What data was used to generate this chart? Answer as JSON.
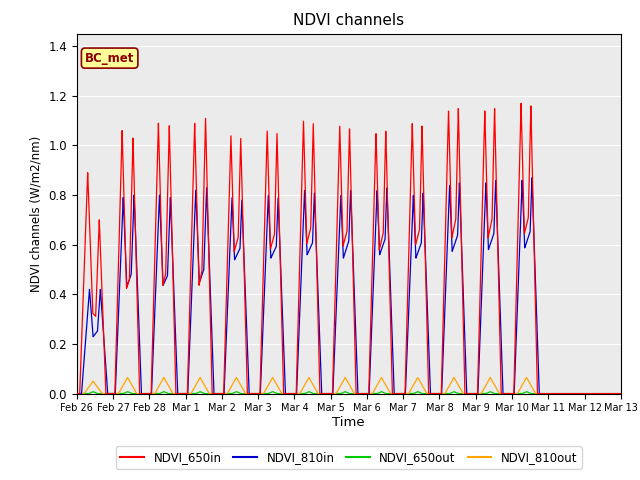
{
  "title": "NDVI channels",
  "xlabel": "Time",
  "ylabel": "NDVI channels (W/m2/nm)",
  "ylim": [
    0,
    1.45
  ],
  "xlim": [
    0,
    15
  ],
  "annotation_text": "BC_met",
  "annotation_bg": "#FFFF99",
  "annotation_border": "#8B0000",
  "bg_color": "#EBEBEB",
  "fig_bg": "#FFFFFF",
  "line_colors": {
    "NDVI_650in": "#FF0000",
    "NDVI_810in": "#0000CC",
    "NDVI_650out": "#00CC00",
    "NDVI_810out": "#FFA500"
  },
  "legend_labels": [
    "NDVI_650in",
    "NDVI_810in",
    "NDVI_650out",
    "NDVI_810out"
  ],
  "tick_labels": [
    "Feb 26",
    "Feb 27",
    "Feb 28",
    "Mar 1",
    "Mar 2",
    "Mar 3",
    "Mar 4",
    "Mar 5",
    "Mar 6",
    "Mar 7",
    "Mar 8",
    "Mar 9",
    "Mar 10",
    "Mar 11",
    "Mar 12",
    "Mar 13"
  ],
  "yticks": [
    0.0,
    0.2,
    0.4,
    0.6,
    0.8,
    1.0,
    1.2,
    1.4
  ],
  "line_width": 0.9
}
